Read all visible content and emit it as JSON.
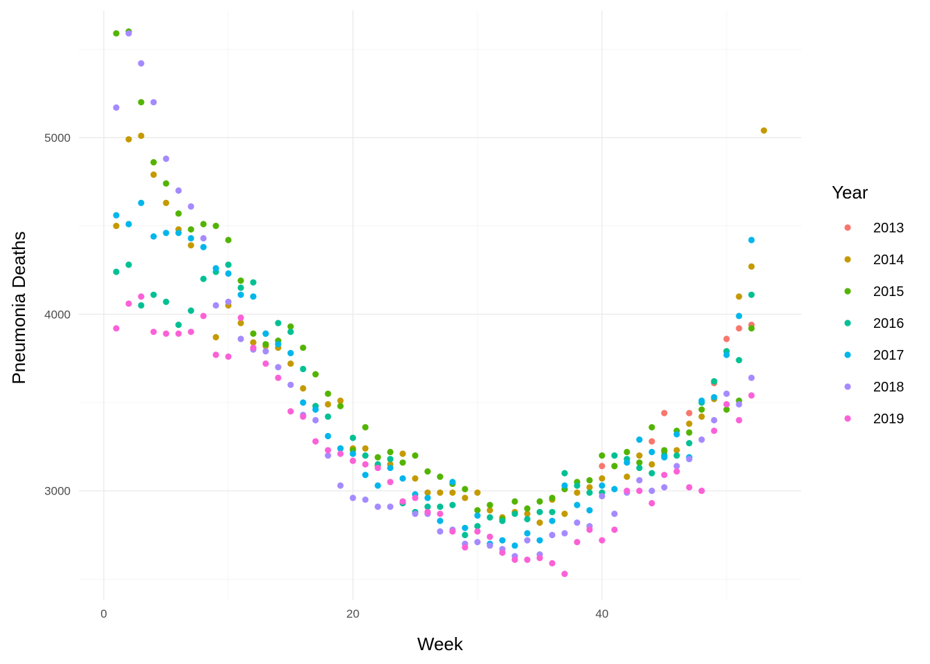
{
  "chart_data": {
    "type": "scatter",
    "xlabel": "Week",
    "ylabel": "Pneumonia Deaths",
    "xlim": [
      -2,
      56
    ],
    "ylim": [
      2380,
      5720
    ],
    "x_ticks": [
      0,
      20,
      40
    ],
    "y_ticks": [
      3000,
      4000,
      5000
    ],
    "x_tick_labels": [
      "0",
      "20",
      "40"
    ],
    "y_tick_labels": [
      "3000",
      "4000",
      "5000"
    ],
    "grid": true,
    "legend": {
      "title": "Year",
      "position": "right"
    },
    "series": [
      {
        "name": "2013",
        "color": "#F8766D",
        "points": [
          [
            40,
            3140
          ],
          [
            44,
            3280
          ],
          [
            45,
            3440
          ],
          [
            47,
            3440
          ],
          [
            49,
            3610
          ],
          [
            50,
            3860
          ],
          [
            51,
            3920
          ],
          [
            52,
            3940
          ]
        ]
      },
      {
        "name": "2014",
        "color": "#C49A00",
        "points": [
          [
            1,
            4500
          ],
          [
            2,
            4990
          ],
          [
            3,
            5010
          ],
          [
            4,
            4790
          ],
          [
            5,
            4630
          ],
          [
            6,
            4480
          ],
          [
            7,
            4390
          ],
          [
            9,
            3870
          ],
          [
            10,
            4050
          ],
          [
            11,
            3950
          ],
          [
            12,
            3840
          ],
          [
            13,
            3820
          ],
          [
            14,
            3810
          ],
          [
            15,
            3720
          ],
          [
            16,
            3580
          ],
          [
            17,
            3480
          ],
          [
            18,
            3490
          ],
          [
            19,
            3510
          ],
          [
            20,
            3240
          ],
          [
            21,
            3240
          ],
          [
            22,
            3140
          ],
          [
            23,
            3150
          ],
          [
            24,
            3210
          ],
          [
            25,
            3070
          ],
          [
            26,
            2990
          ],
          [
            27,
            2990
          ],
          [
            28,
            2990
          ],
          [
            29,
            2960
          ],
          [
            30,
            2990
          ],
          [
            31,
            2890
          ],
          [
            32,
            2850
          ],
          [
            33,
            2880
          ],
          [
            34,
            2870
          ],
          [
            35,
            2820
          ],
          [
            36,
            2950
          ],
          [
            37,
            2870
          ],
          [
            38,
            2990
          ],
          [
            39,
            3020
          ],
          [
            40,
            3070
          ],
          [
            41,
            3140
          ],
          [
            42,
            3080
          ],
          [
            43,
            3200
          ],
          [
            44,
            3150
          ],
          [
            45,
            3220
          ],
          [
            46,
            3230
          ],
          [
            47,
            3380
          ],
          [
            48,
            3420
          ],
          [
            49,
            3520
          ],
          [
            50,
            3790
          ],
          [
            51,
            4100
          ],
          [
            52,
            4270
          ],
          [
            53,
            5040
          ]
        ]
      },
      {
        "name": "2015",
        "color": "#53B400",
        "points": [
          [
            1,
            5590
          ],
          [
            2,
            5600
          ],
          [
            3,
            5200
          ],
          [
            4,
            4860
          ],
          [
            5,
            4740
          ],
          [
            6,
            4570
          ],
          [
            7,
            4480
          ],
          [
            8,
            4510
          ],
          [
            9,
            4500
          ],
          [
            10,
            4420
          ],
          [
            11,
            4190
          ],
          [
            12,
            3890
          ],
          [
            13,
            3830
          ],
          [
            14,
            3850
          ],
          [
            15,
            3930
          ],
          [
            16,
            3810
          ],
          [
            17,
            3660
          ],
          [
            18,
            3550
          ],
          [
            19,
            3480
          ],
          [
            20,
            3230
          ],
          [
            21,
            3360
          ],
          [
            22,
            3190
          ],
          [
            23,
            3220
          ],
          [
            24,
            3160
          ],
          [
            25,
            3200
          ],
          [
            26,
            3110
          ],
          [
            27,
            3080
          ],
          [
            28,
            3040
          ],
          [
            29,
            3010
          ],
          [
            30,
            2890
          ],
          [
            31,
            2920
          ],
          [
            32,
            2840
          ],
          [
            33,
            2940
          ],
          [
            34,
            2900
          ],
          [
            35,
            2940
          ],
          [
            36,
            2960
          ],
          [
            37,
            3010
          ],
          [
            38,
            3050
          ],
          [
            39,
            3060
          ],
          [
            40,
            3200
          ],
          [
            41,
            3140
          ],
          [
            42,
            3220
          ],
          [
            43,
            3160
          ],
          [
            44,
            3360
          ],
          [
            45,
            3230
          ],
          [
            46,
            3340
          ],
          [
            47,
            3330
          ],
          [
            48,
            3460
          ],
          [
            49,
            3620
          ],
          [
            50,
            3460
          ],
          [
            51,
            3510
          ],
          [
            52,
            3920
          ]
        ]
      },
      {
        "name": "2016",
        "color": "#00C094",
        "points": [
          [
            1,
            4240
          ],
          [
            2,
            4280
          ],
          [
            3,
            4050
          ],
          [
            4,
            4110
          ],
          [
            5,
            4070
          ],
          [
            6,
            3940
          ],
          [
            7,
            4020
          ],
          [
            8,
            4200
          ],
          [
            9,
            4240
          ],
          [
            10,
            4280
          ],
          [
            11,
            4150
          ],
          [
            12,
            4180
          ],
          [
            13,
            3890
          ],
          [
            14,
            3950
          ],
          [
            15,
            3900
          ],
          [
            16,
            3690
          ],
          [
            17,
            3480
          ],
          [
            18,
            3420
          ],
          [
            19,
            3240
          ],
          [
            20,
            3300
          ],
          [
            21,
            3200
          ],
          [
            22,
            3150
          ],
          [
            23,
            3180
          ],
          [
            24,
            2930
          ],
          [
            25,
            2880
          ],
          [
            26,
            2910
          ],
          [
            27,
            2910
          ],
          [
            28,
            2920
          ],
          [
            29,
            2750
          ],
          [
            30,
            2800
          ],
          [
            31,
            2850
          ],
          [
            32,
            2830
          ],
          [
            33,
            2870
          ],
          [
            34,
            2840
          ],
          [
            35,
            2880
          ],
          [
            36,
            2880
          ],
          [
            37,
            3100
          ],
          [
            38,
            3030
          ],
          [
            39,
            2990
          ],
          [
            40,
            2990
          ],
          [
            41,
            3200
          ],
          [
            42,
            3180
          ],
          [
            43,
            3130
          ],
          [
            44,
            3100
          ],
          [
            45,
            3200
          ],
          [
            46,
            3200
          ],
          [
            47,
            3270
          ],
          [
            48,
            3500
          ],
          [
            49,
            3620
          ],
          [
            50,
            3790
          ],
          [
            51,
            3740
          ],
          [
            52,
            4110
          ]
        ]
      },
      {
        "name": "2017",
        "color": "#00B6EB",
        "points": [
          [
            1,
            4560
          ],
          [
            2,
            4510
          ],
          [
            3,
            4630
          ],
          [
            4,
            4440
          ],
          [
            5,
            4460
          ],
          [
            6,
            4460
          ],
          [
            7,
            4430
          ],
          [
            8,
            4380
          ],
          [
            9,
            4260
          ],
          [
            10,
            4230
          ],
          [
            11,
            4110
          ],
          [
            12,
            4100
          ],
          [
            13,
            3890
          ],
          [
            14,
            3830
          ],
          [
            15,
            3780
          ],
          [
            16,
            3500
          ],
          [
            17,
            3460
          ],
          [
            18,
            3310
          ],
          [
            19,
            3240
          ],
          [
            20,
            3210
          ],
          [
            21,
            3090
          ],
          [
            22,
            3030
          ],
          [
            23,
            3130
          ],
          [
            24,
            3070
          ],
          [
            25,
            2980
          ],
          [
            26,
            2960
          ],
          [
            27,
            2830
          ],
          [
            28,
            3050
          ],
          [
            29,
            2790
          ],
          [
            30,
            2860
          ],
          [
            31,
            2700
          ],
          [
            32,
            2720
          ],
          [
            33,
            2690
          ],
          [
            34,
            2760
          ],
          [
            35,
            2720
          ],
          [
            36,
            2830
          ],
          [
            37,
            3030
          ],
          [
            38,
            2920
          ],
          [
            39,
            2890
          ],
          [
            40,
            3030
          ],
          [
            41,
            3010
          ],
          [
            42,
            3160
          ],
          [
            43,
            3290
          ],
          [
            44,
            3220
          ],
          [
            45,
            3190
          ],
          [
            46,
            3320
          ],
          [
            47,
            3190
          ],
          [
            48,
            3510
          ],
          [
            49,
            3530
          ],
          [
            50,
            3770
          ],
          [
            51,
            3990
          ],
          [
            52,
            4420
          ]
        ]
      },
      {
        "name": "2018",
        "color": "#A58AFF",
        "points": [
          [
            1,
            5170
          ],
          [
            2,
            5590
          ],
          [
            3,
            5420
          ],
          [
            4,
            5200
          ],
          [
            5,
            4880
          ],
          [
            6,
            4700
          ],
          [
            7,
            4610
          ],
          [
            8,
            4430
          ],
          [
            9,
            4050
          ],
          [
            10,
            4070
          ],
          [
            11,
            3860
          ],
          [
            12,
            3800
          ],
          [
            13,
            3790
          ],
          [
            14,
            3700
          ],
          [
            15,
            3600
          ],
          [
            16,
            3430
          ],
          [
            17,
            3400
          ],
          [
            18,
            3200
          ],
          [
            19,
            3030
          ],
          [
            20,
            2960
          ],
          [
            21,
            2950
          ],
          [
            22,
            2910
          ],
          [
            23,
            2910
          ],
          [
            24,
            2940
          ],
          [
            25,
            2870
          ],
          [
            26,
            2870
          ],
          [
            27,
            2770
          ],
          [
            28,
            2780
          ],
          [
            29,
            2700
          ],
          [
            30,
            2710
          ],
          [
            31,
            2690
          ],
          [
            32,
            2670
          ],
          [
            33,
            2630
          ],
          [
            34,
            2720
          ],
          [
            35,
            2640
          ],
          [
            36,
            2750
          ],
          [
            37,
            2760
          ],
          [
            38,
            2820
          ],
          [
            39,
            2800
          ],
          [
            40,
            2970
          ],
          [
            41,
            2870
          ],
          [
            42,
            2990
          ],
          [
            43,
            3060
          ],
          [
            44,
            3000
          ],
          [
            45,
            3020
          ],
          [
            46,
            3140
          ],
          [
            47,
            3180
          ],
          [
            48,
            3290
          ],
          [
            49,
            3400
          ],
          [
            50,
            3550
          ],
          [
            51,
            3490
          ],
          [
            52,
            3640
          ]
        ]
      },
      {
        "name": "2019",
        "color": "#FB61D7",
        "points": [
          [
            1,
            3920
          ],
          [
            2,
            4060
          ],
          [
            3,
            4100
          ],
          [
            4,
            3900
          ],
          [
            5,
            3890
          ],
          [
            6,
            3890
          ],
          [
            7,
            3900
          ],
          [
            8,
            3990
          ],
          [
            9,
            3770
          ],
          [
            10,
            3760
          ],
          [
            11,
            3980
          ],
          [
            12,
            3810
          ],
          [
            13,
            3720
          ],
          [
            14,
            3640
          ],
          [
            15,
            3450
          ],
          [
            16,
            3420
          ],
          [
            17,
            3280
          ],
          [
            18,
            3230
          ],
          [
            19,
            3210
          ],
          [
            20,
            3170
          ],
          [
            21,
            3150
          ],
          [
            22,
            3130
          ],
          [
            23,
            3050
          ],
          [
            24,
            2940
          ],
          [
            25,
            2960
          ],
          [
            26,
            2880
          ],
          [
            27,
            2870
          ],
          [
            28,
            2770
          ],
          [
            29,
            2680
          ],
          [
            30,
            2770
          ],
          [
            31,
            2740
          ],
          [
            32,
            2650
          ],
          [
            33,
            2610
          ],
          [
            34,
            2610
          ],
          [
            35,
            2620
          ],
          [
            36,
            2590
          ],
          [
            37,
            2530
          ],
          [
            38,
            2710
          ],
          [
            39,
            2780
          ],
          [
            40,
            2720
          ],
          [
            41,
            2780
          ],
          [
            42,
            3000
          ],
          [
            43,
            3000
          ],
          [
            44,
            2930
          ],
          [
            45,
            3090
          ],
          [
            46,
            3110
          ],
          [
            47,
            3020
          ],
          [
            48,
            3000
          ],
          [
            49,
            3340
          ],
          [
            50,
            3490
          ],
          [
            51,
            3400
          ],
          [
            52,
            3540
          ]
        ]
      }
    ]
  }
}
